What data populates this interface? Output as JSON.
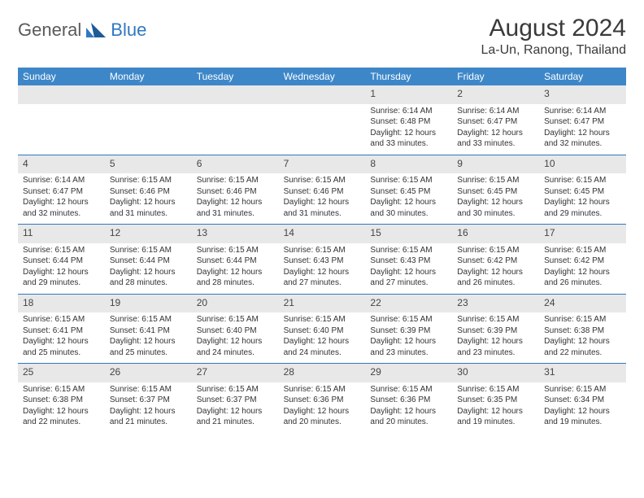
{
  "brand": {
    "part1": "General",
    "part2": "Blue"
  },
  "title": "August 2024",
  "location": "La-Un, Ranong, Thailand",
  "colors": {
    "header_bg": "#3d87c9",
    "header_divider": "#2f78c2",
    "daynum_bg": "#e8e8e8",
    "text": "#333333",
    "brand_gray": "#5a5a5a",
    "brand_blue": "#2f78c2",
    "background": "#ffffff"
  },
  "typography": {
    "title_fontsize": 30,
    "location_fontsize": 16,
    "dow_fontsize": 12,
    "daynum_fontsize": 12,
    "detail_fontsize": 10
  },
  "days_of_week": [
    "Sunday",
    "Monday",
    "Tuesday",
    "Wednesday",
    "Thursday",
    "Friday",
    "Saturday"
  ],
  "labels": {
    "sunrise": "Sunrise:",
    "sunset": "Sunset:",
    "daylight": "Daylight:"
  },
  "weeks": [
    [
      null,
      null,
      null,
      null,
      {
        "n": "1",
        "sr": "6:14 AM",
        "ss": "6:48 PM",
        "dl": "12 hours and 33 minutes."
      },
      {
        "n": "2",
        "sr": "6:14 AM",
        "ss": "6:47 PM",
        "dl": "12 hours and 33 minutes."
      },
      {
        "n": "3",
        "sr": "6:14 AM",
        "ss": "6:47 PM",
        "dl": "12 hours and 32 minutes."
      }
    ],
    [
      {
        "n": "4",
        "sr": "6:14 AM",
        "ss": "6:47 PM",
        "dl": "12 hours and 32 minutes."
      },
      {
        "n": "5",
        "sr": "6:15 AM",
        "ss": "6:46 PM",
        "dl": "12 hours and 31 minutes."
      },
      {
        "n": "6",
        "sr": "6:15 AM",
        "ss": "6:46 PM",
        "dl": "12 hours and 31 minutes."
      },
      {
        "n": "7",
        "sr": "6:15 AM",
        "ss": "6:46 PM",
        "dl": "12 hours and 31 minutes."
      },
      {
        "n": "8",
        "sr": "6:15 AM",
        "ss": "6:45 PM",
        "dl": "12 hours and 30 minutes."
      },
      {
        "n": "9",
        "sr": "6:15 AM",
        "ss": "6:45 PM",
        "dl": "12 hours and 30 minutes."
      },
      {
        "n": "10",
        "sr": "6:15 AM",
        "ss": "6:45 PM",
        "dl": "12 hours and 29 minutes."
      }
    ],
    [
      {
        "n": "11",
        "sr": "6:15 AM",
        "ss": "6:44 PM",
        "dl": "12 hours and 29 minutes."
      },
      {
        "n": "12",
        "sr": "6:15 AM",
        "ss": "6:44 PM",
        "dl": "12 hours and 28 minutes."
      },
      {
        "n": "13",
        "sr": "6:15 AM",
        "ss": "6:44 PM",
        "dl": "12 hours and 28 minutes."
      },
      {
        "n": "14",
        "sr": "6:15 AM",
        "ss": "6:43 PM",
        "dl": "12 hours and 27 minutes."
      },
      {
        "n": "15",
        "sr": "6:15 AM",
        "ss": "6:43 PM",
        "dl": "12 hours and 27 minutes."
      },
      {
        "n": "16",
        "sr": "6:15 AM",
        "ss": "6:42 PM",
        "dl": "12 hours and 26 minutes."
      },
      {
        "n": "17",
        "sr": "6:15 AM",
        "ss": "6:42 PM",
        "dl": "12 hours and 26 minutes."
      }
    ],
    [
      {
        "n": "18",
        "sr": "6:15 AM",
        "ss": "6:41 PM",
        "dl": "12 hours and 25 minutes."
      },
      {
        "n": "19",
        "sr": "6:15 AM",
        "ss": "6:41 PM",
        "dl": "12 hours and 25 minutes."
      },
      {
        "n": "20",
        "sr": "6:15 AM",
        "ss": "6:40 PM",
        "dl": "12 hours and 24 minutes."
      },
      {
        "n": "21",
        "sr": "6:15 AM",
        "ss": "6:40 PM",
        "dl": "12 hours and 24 minutes."
      },
      {
        "n": "22",
        "sr": "6:15 AM",
        "ss": "6:39 PM",
        "dl": "12 hours and 23 minutes."
      },
      {
        "n": "23",
        "sr": "6:15 AM",
        "ss": "6:39 PM",
        "dl": "12 hours and 23 minutes."
      },
      {
        "n": "24",
        "sr": "6:15 AM",
        "ss": "6:38 PM",
        "dl": "12 hours and 22 minutes."
      }
    ],
    [
      {
        "n": "25",
        "sr": "6:15 AM",
        "ss": "6:38 PM",
        "dl": "12 hours and 22 minutes."
      },
      {
        "n": "26",
        "sr": "6:15 AM",
        "ss": "6:37 PM",
        "dl": "12 hours and 21 minutes."
      },
      {
        "n": "27",
        "sr": "6:15 AM",
        "ss": "6:37 PM",
        "dl": "12 hours and 21 minutes."
      },
      {
        "n": "28",
        "sr": "6:15 AM",
        "ss": "6:36 PM",
        "dl": "12 hours and 20 minutes."
      },
      {
        "n": "29",
        "sr": "6:15 AM",
        "ss": "6:36 PM",
        "dl": "12 hours and 20 minutes."
      },
      {
        "n": "30",
        "sr": "6:15 AM",
        "ss": "6:35 PM",
        "dl": "12 hours and 19 minutes."
      },
      {
        "n": "31",
        "sr": "6:15 AM",
        "ss": "6:34 PM",
        "dl": "12 hours and 19 minutes."
      }
    ]
  ]
}
